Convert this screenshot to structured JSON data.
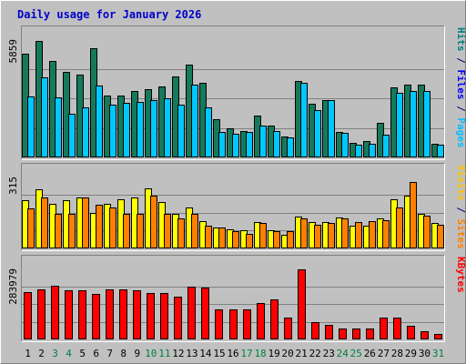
{
  "chart_data": {
    "type": "bar",
    "title": "Daily usage for January 2026",
    "categories": [
      "1",
      "2",
      "3",
      "4",
      "5",
      "6",
      "7",
      "8",
      "9",
      "10",
      "11",
      "12",
      "13",
      "14",
      "15",
      "16",
      "17",
      "18",
      "19",
      "20",
      "21",
      "22",
      "23",
      "24",
      "25",
      "26",
      "27",
      "28",
      "29",
      "30",
      "31"
    ],
    "weekend_days": [
      "3",
      "4",
      "10",
      "11",
      "17",
      "18",
      "24",
      "25",
      "31"
    ],
    "panels": [
      {
        "id": "hits",
        "ylim": [
          0,
          5859
        ],
        "max_label": "5859",
        "side_labels": [
          {
            "text": "Hits",
            "color": "#008080"
          },
          {
            "text": " / ",
            "color": "#000080"
          },
          {
            "text": "Files",
            "color": "#0000ff"
          },
          {
            "text": " / ",
            "color": "#000080"
          },
          {
            "text": "Pages",
            "color": "#00c0ff"
          }
        ],
        "series": [
          {
            "name": "Hits",
            "color": "#157a5c",
            "values": [
              5150,
              5791,
              4757,
              4240,
              4098,
              5410,
              3055,
              3055,
              3308,
              3390,
              3525,
              3994,
              4597,
              3706,
              1877,
              1463,
              1301,
              2069,
              1579,
              1051,
              3788,
              2668,
              2817,
              1277,
              703,
              828,
              1732,
              3472,
              3594,
              3594,
              680
            ]
          },
          {
            "name": "Files",
            "color": "#00c8ff",
            "values": [
              3004,
              3966,
              2975,
              2182,
              2480,
              3579,
              2617,
              2689,
              2762,
              2855,
              2925,
              2597,
              3608,
              2467,
              1253,
              1156,
              1280,
              1581,
              1308,
              970,
              3679,
              2352,
              2832,
              1208,
              633,
              685,
              1125,
              3187,
              3293,
              3293,
              614
            ]
          },
          {
            "name": "Pages",
            "color": "#00c8ff",
            "values": []
          }
        ]
      },
      {
        "id": "visits",
        "ylim": [
          0,
          315
        ],
        "max_label": "315",
        "side_labels": [
          {
            "text": "Visits",
            "color": "#ffc000"
          },
          {
            "text": " / ",
            "color": "#000080"
          },
          {
            "text": "Sites",
            "color": "#ff8000"
          }
        ],
        "series": [
          {
            "name": "Visits",
            "color": "#ffff00",
            "values": [
              210,
              260,
              195,
              210,
              225,
              155,
              195,
              215,
              225,
              265,
              205,
              150,
              180,
              120,
              90,
              85,
              80,
              115,
              80,
              60,
              140,
              115,
              115,
              135,
              100,
              100,
              130,
              215,
              230,
              150,
              110
            ]
          },
          {
            "name": "Sites",
            "color": "#ff8000",
            "values": [
              175,
              225,
              150,
              150,
              225,
              190,
              180,
              150,
              150,
              230,
              150,
              130,
              150,
              100,
              90,
              75,
              65,
              110,
              75,
              75,
              130,
              105,
              110,
              130,
              115,
              120,
              125,
              180,
              290,
              145,
              105
            ]
          }
        ]
      },
      {
        "id": "kbytes",
        "ylim": [
          0,
          283979
        ],
        "max_label": "283979",
        "side_labels": [
          {
            "text": "KBytes",
            "color": "#ff0000"
          }
        ],
        "series": [
          {
            "name": "KBytes",
            "color": "#ff0000",
            "values": [
              190000,
              200000,
              213000,
              198000,
              198000,
              183000,
              202000,
              202000,
              198000,
              186000,
              186000,
              171000,
              212000,
              209000,
              120000,
              120000,
              120000,
              146000,
              160000,
              89000,
              281000,
              69000,
              57000,
              45000,
              45000,
              45000,
              89000,
              89000,
              53000,
              33000,
              21000
            ]
          }
        ]
      }
    ]
  }
}
